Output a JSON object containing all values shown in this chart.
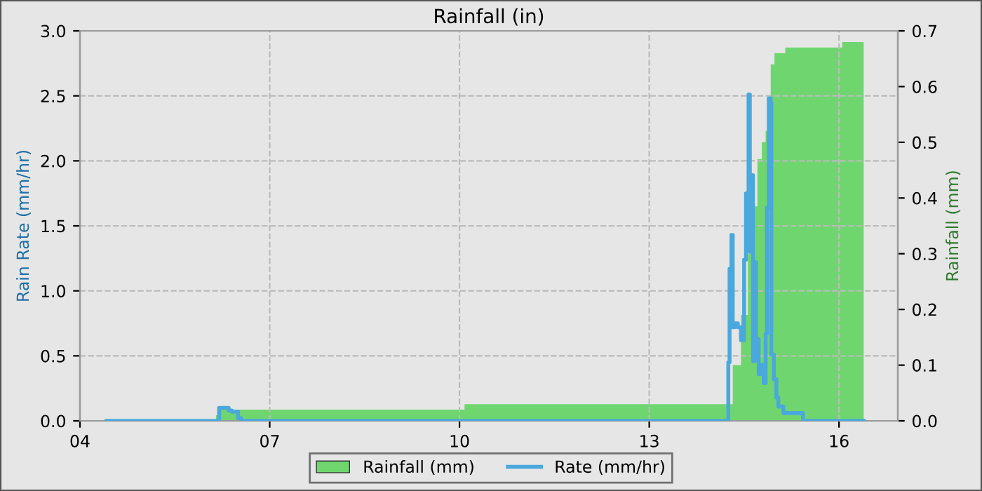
{
  "chart_data": {
    "type": "step",
    "title": "Rainfall (in)",
    "ylabel": "Rain Rate (mm/hr)",
    "y2label": "Rainfall (mm)",
    "xlim": [
      4,
      16.93
    ],
    "xticks": [
      {
        "value": 4,
        "label": "04"
      },
      {
        "value": 7,
        "label": "07"
      },
      {
        "value": 10,
        "label": "10"
      },
      {
        "value": 13,
        "label": "13"
      },
      {
        "value": 16,
        "label": "16"
      }
    ],
    "ylim": [
      0,
      3
    ],
    "yticks": [
      {
        "value": 0,
        "label": "0.0"
      },
      {
        "value": 0.5,
        "label": "0.5"
      },
      {
        "value": 1,
        "label": "1.0"
      },
      {
        "value": 1.5,
        "label": "1.5"
      },
      {
        "value": 2,
        "label": "2.0"
      },
      {
        "value": 2.5,
        "label": "2.5"
      },
      {
        "value": 3,
        "label": "3.0"
      }
    ],
    "y2lim": [
      0,
      0.7
    ],
    "y2ticks": [
      {
        "value": 0,
        "label": "0.0"
      },
      0.1,
      0.2,
      0.3,
      0.4,
      0.5,
      0.6,
      0.7
    ],
    "grid": true,
    "legend": "bottom",
    "series": [
      {
        "name": "Rainfall (mm)",
        "type": "area",
        "axis": "y2",
        "color": "#6fd66f",
        "x": [
          4.44,
          6.15,
          6.22,
          10.08,
          14.24,
          14.32,
          14.45,
          14.56,
          14.64,
          14.71,
          14.78,
          14.84,
          14.87,
          14.92,
          14.98,
          15.15,
          16.05,
          16.39
        ],
        "values": [
          0,
          0.01,
          0.02,
          0.03,
          0.03,
          0.1,
          0.19,
          0.3,
          0.385,
          0.47,
          0.5,
          0.52,
          0.58,
          0.64,
          0.66,
          0.67,
          0.68,
          0.68
        ]
      },
      {
        "name": "Rate (mm/hr)",
        "axis": "y",
        "color": "#4aa8dc",
        "x": [
          4.42,
          6.2,
          6.35,
          6.4,
          6.5,
          6.55,
          14.25,
          14.27,
          14.3,
          14.32,
          14.35,
          14.4,
          14.45,
          14.5,
          14.53,
          14.57,
          14.59,
          14.61,
          14.64,
          14.67,
          14.69,
          14.73,
          14.78,
          14.81,
          14.84,
          14.86,
          14.89,
          14.92,
          14.93,
          14.97,
          15.01,
          15.04,
          15.12,
          15.37,
          15.43,
          16.39
        ],
        "values": [
          0,
          0.1,
          0.08,
          0.07,
          0.02,
          0,
          0.45,
          1.17,
          1.43,
          0.72,
          0.75,
          0.72,
          0.62,
          1.24,
          1.75,
          2.51,
          1.3,
          1.89,
          0.46,
          1.22,
          0.63,
          0.36,
          0.43,
          0.29,
          0.67,
          1.64,
          2.48,
          2.45,
          0.51,
          0.32,
          0.18,
          0.11,
          0.06,
          0.06,
          0,
          0
        ]
      }
    ]
  }
}
